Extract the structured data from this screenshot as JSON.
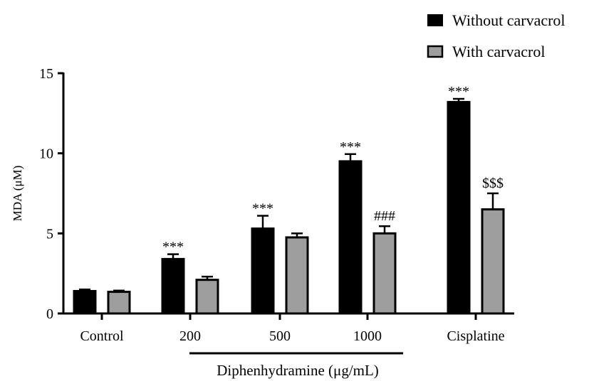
{
  "chart_data": {
    "type": "bar",
    "ylabel": "MDA (μM)",
    "ylim": [
      0,
      15
    ],
    "yticks": [
      0,
      5,
      10,
      15
    ],
    "categories": [
      "Control",
      "200",
      "500",
      "1000",
      "Cisplatine"
    ],
    "group_label": "Diphenhydramine (μg/mL)",
    "legend_position": "top-right",
    "series": [
      {
        "name": "Without carvacrol",
        "color": "#000000",
        "values": [
          1.4,
          3.4,
          5.3,
          9.5,
          13.2
        ],
        "errors": [
          0.1,
          0.3,
          0.8,
          0.45,
          0.2
        ],
        "annotations": [
          "",
          "***",
          "***",
          "***",
          "***"
        ]
      },
      {
        "name": "With carvacrol",
        "color": "#9e9e9e",
        "values": [
          1.35,
          2.1,
          4.75,
          5.0,
          6.5
        ],
        "errors": [
          0.08,
          0.2,
          0.25,
          0.45,
          1.0
        ],
        "annotations": [
          "",
          "",
          "",
          "###",
          "$$$"
        ]
      }
    ]
  }
}
